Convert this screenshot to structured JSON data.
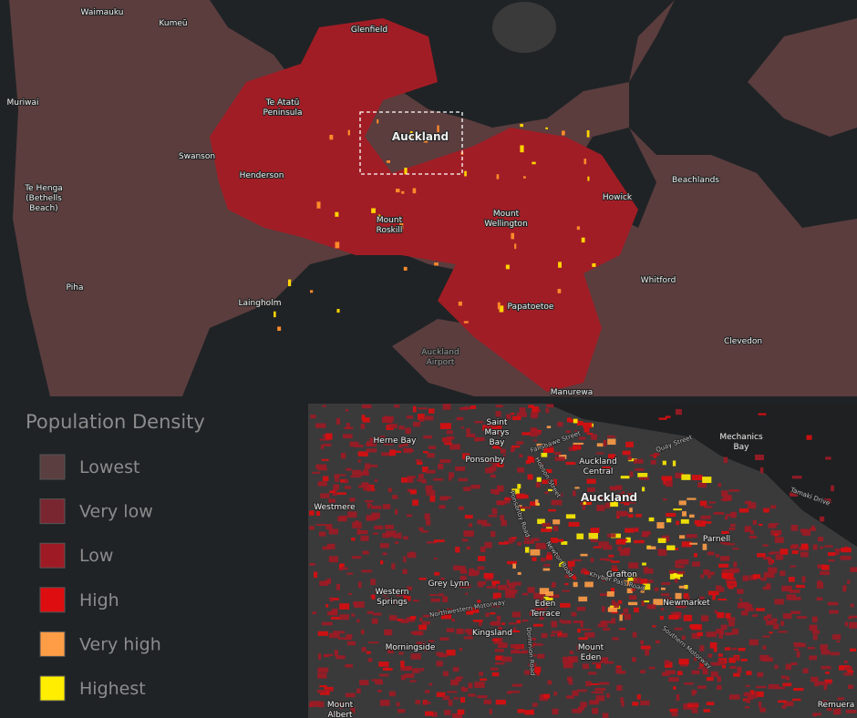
{
  "overview_map": {
    "labels": [
      {
        "lines": [
          "Waimauku"
        ]
      },
      {
        "lines": [
          "Kumeū"
        ]
      },
      {
        "lines": [
          "Glenfield"
        ]
      },
      {
        "lines": [
          "Muriwai"
        ]
      },
      {
        "lines": [
          "Te Atatū",
          "Peninsula"
        ]
      },
      {
        "lines": [
          "Auckland"
        ]
      },
      {
        "lines": [
          "Swanson"
        ]
      },
      {
        "lines": [
          "Henderson"
        ]
      },
      {
        "lines": [
          "Te Henga",
          "(Bethells",
          "Beach)"
        ]
      },
      {
        "lines": [
          "Mount",
          "Roskill"
        ]
      },
      {
        "lines": [
          "Mount",
          "Wellington"
        ]
      },
      {
        "lines": [
          "Howick"
        ]
      },
      {
        "lines": [
          "Beachlands"
        ]
      },
      {
        "lines": [
          "Piha"
        ]
      },
      {
        "lines": [
          "Laingholm"
        ]
      },
      {
        "lines": [
          "Whitford"
        ]
      },
      {
        "lines": [
          "Papatoetoe"
        ]
      },
      {
        "lines": [
          "Clevedon"
        ]
      },
      {
        "lines": [
          "Auckland",
          "Airport"
        ]
      },
      {
        "lines": [
          "Manurewa"
        ]
      }
    ]
  },
  "legend": {
    "title": "Population Density",
    "items": [
      {
        "label": "Lowest",
        "color": "#5a3e40"
      },
      {
        "label": "Very low",
        "color": "#7a2630"
      },
      {
        "label": "Low",
        "color": "#9e1b25"
      },
      {
        "label": "High",
        "color": "#dd0d10"
      },
      {
        "label": "Very high",
        "color": "#ff9d47"
      },
      {
        "label": "Highest",
        "color": "#ffee00"
      }
    ]
  },
  "detail_map": {
    "labels": [
      {
        "lines": [
          "Saint",
          "Marys",
          "Bay"
        ]
      },
      {
        "lines": [
          "Herne Bay"
        ]
      },
      {
        "lines": [
          "Ponsonby"
        ]
      },
      {
        "lines": [
          "Auckland",
          "Central"
        ]
      },
      {
        "lines": [
          "Mechanics",
          "Bay"
        ]
      },
      {
        "lines": [
          "Westmere"
        ]
      },
      {
        "lines": [
          "Auckland"
        ]
      },
      {
        "lines": [
          "Parnell"
        ]
      },
      {
        "lines": [
          "Grafton"
        ]
      },
      {
        "lines": [
          "Grey Lynn"
        ]
      },
      {
        "lines": [
          "Western",
          "Springs"
        ]
      },
      {
        "lines": [
          "Eden",
          "Terrace"
        ]
      },
      {
        "lines": [
          "Newmarket"
        ]
      },
      {
        "lines": [
          "Kingsland"
        ]
      },
      {
        "lines": [
          "Morningside"
        ]
      },
      {
        "lines": [
          "Mount",
          "Eden"
        ]
      },
      {
        "lines": [
          "Mount",
          "Albert"
        ]
      },
      {
        "lines": [
          "Remuera"
        ]
      }
    ],
    "streets": [
      "Quay Street",
      "Fanshawe Street",
      "Tamaki Drive",
      "Northwestern Motorway",
      "Ponsonby Road",
      "Newton Road",
      "Khyber Pass Road",
      "Southern Motorway",
      "Dominion Road",
      "Hobson Street"
    ]
  }
}
